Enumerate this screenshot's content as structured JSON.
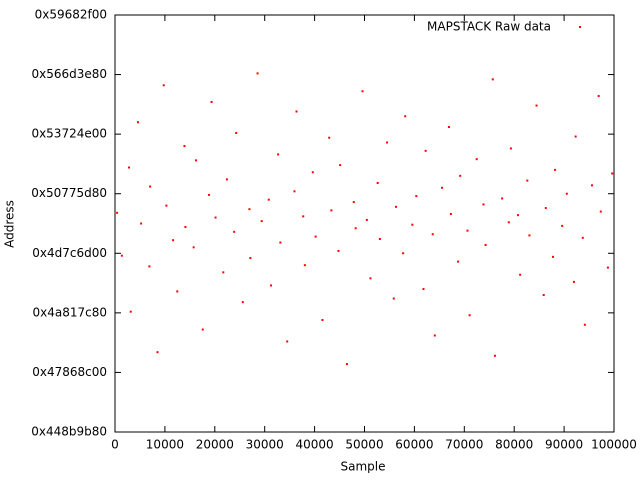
{
  "chart_data": {
    "type": "scatter",
    "x_label": "Sample",
    "y_label": "Address",
    "xlim": [
      0,
      100000
    ],
    "ylim": [
      1150000000,
      1500000000
    ],
    "xticks": [
      0,
      10000,
      20000,
      30000,
      40000,
      50000,
      60000,
      70000,
      80000,
      90000,
      100000
    ],
    "yticks": [
      {
        "value": 1150000000,
        "label": "0x448b9b80"
      },
      {
        "value": 1200000000,
        "label": "0x47868c00"
      },
      {
        "value": 1250000000,
        "label": "0x4a817c80"
      },
      {
        "value": 1300000000,
        "label": "0x4d7c6d00"
      },
      {
        "value": 1350000000,
        "label": "0x50775d80"
      },
      {
        "value": 1400000000,
        "label": "0x53724e00"
      },
      {
        "value": 1450000000,
        "label": "0x566d3e80"
      },
      {
        "value": 1500000000,
        "label": "0x59682f00"
      }
    ],
    "legend": "top-right",
    "x": [
      420,
      1370,
      2810,
      3150,
      4600,
      5230,
      6890,
      7040,
      8510,
      9770,
      10300,
      11650,
      12480,
      13920,
      14110,
      15760,
      16240,
      17590,
      18830,
      19360,
      20150,
      21700,
      22430,
      23880,
      24290,
      25610,
      26940,
      27120,
      28570,
      29400,
      30820,
      31260,
      32690,
      33140,
      34510,
      35970,
      36380,
      37720,
      38050,
      39640,
      40210,
      41580,
      42930,
      43360,
      44790,
      45120,
      46480,
      47850,
      48230,
      49610,
      50470,
      51190,
      52640,
      53080,
      54520,
      55870,
      56310,
      57740,
      58160,
      59590,
      60380,
      61820,
      62250,
      63670,
      64090,
      65540,
      66920,
      67310,
      68760,
      69180,
      70640,
      71070,
      72490,
      73850,
      74270,
      75710,
      76140,
      77580,
      78920,
      79340,
      80760,
      81190,
      82630,
      83050,
      84480,
      85910,
      86330,
      87770,
      88190,
      89620,
      90540,
      91970,
      92310,
      93740,
      94160,
      95590,
      96920,
      97350,
      98780,
      99640
    ],
    "series": [
      {
        "name": "MAPSTACK Raw data",
        "color": "#ff0000",
        "values": [
          1334000000,
          1298000000,
          1372000000,
          1251000000,
          1410000000,
          1325000000,
          1289000000,
          1356000000,
          1217000000,
          1441000000,
          1340000000,
          1311000000,
          1268000000,
          1390000000,
          1322000000,
          1305000000,
          1378000000,
          1236000000,
          1349000000,
          1427000000,
          1330000000,
          1284000000,
          1362000000,
          1318000000,
          1401000000,
          1259000000,
          1337000000,
          1296000000,
          1451000000,
          1327000000,
          1345000000,
          1273000000,
          1383000000,
          1309000000,
          1226000000,
          1352000000,
          1419000000,
          1331000000,
          1290000000,
          1368000000,
          1314000000,
          1244000000,
          1397000000,
          1336000000,
          1302000000,
          1374000000,
          1207000000,
          1343000000,
          1321000000,
          1436000000,
          1328000000,
          1279000000,
          1359000000,
          1312000000,
          1393000000,
          1262000000,
          1339000000,
          1300000000,
          1415000000,
          1324000000,
          1348000000,
          1270000000,
          1386000000,
          1316000000,
          1231000000,
          1355000000,
          1406000000,
          1333000000,
          1293000000,
          1365000000,
          1319000000,
          1248000000,
          1379000000,
          1341000000,
          1307000000,
          1446000000,
          1214000000,
          1346000000,
          1326000000,
          1388000000,
          1332000000,
          1282000000,
          1361000000,
          1315000000,
          1424000000,
          1265000000,
          1338000000,
          1297000000,
          1370000000,
          1323000000,
          1350000000,
          1276000000,
          1398000000,
          1313000000,
          1240000000,
          1357000000,
          1432000000,
          1335000000,
          1288000000,
          1367000000
        ]
      }
    ]
  }
}
